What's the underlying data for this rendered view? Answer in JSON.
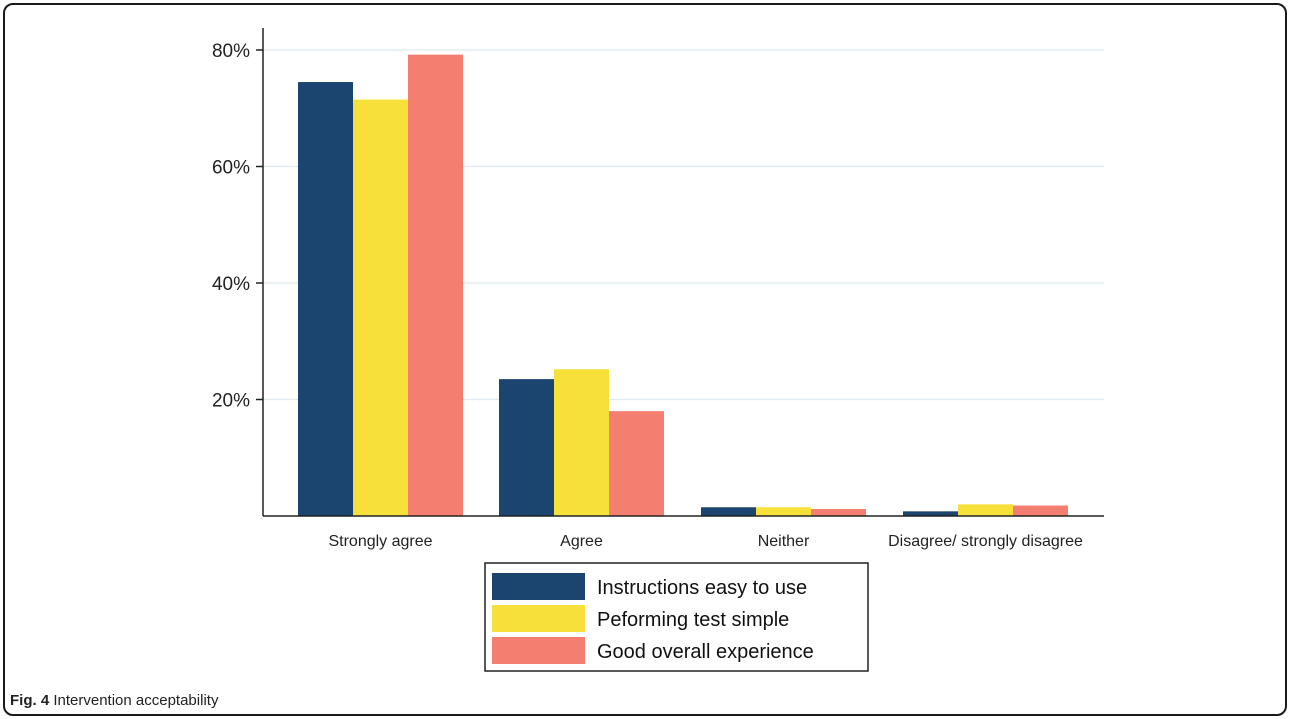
{
  "figure": {
    "caption_label": "Fig. 4",
    "caption_text": "Intervention acceptability"
  },
  "chart_data": {
    "type": "bar",
    "categories": [
      "Strongly agree",
      "Agree",
      "Neither",
      "Disagree/ strongly disagree"
    ],
    "series": [
      {
        "name": "Instructions easy to use",
        "color": "#1b456f",
        "values": [
          74.5,
          23.5,
          1.5,
          0.8
        ]
      },
      {
        "name": "Peforming test simple",
        "color": "#f7e03a",
        "values": [
          71.5,
          25.2,
          1.5,
          2.0
        ]
      },
      {
        "name": "Good overall experience",
        "color": "#f47f71",
        "values": [
          79.2,
          18.0,
          1.2,
          1.8
        ]
      }
    ],
    "yticks": [
      "20%",
      "40%",
      "60%",
      "80%"
    ],
    "ytick_values": [
      20,
      40,
      60,
      80
    ],
    "ylim": [
      0,
      80
    ],
    "grid": true,
    "legend_position": "bottom"
  }
}
